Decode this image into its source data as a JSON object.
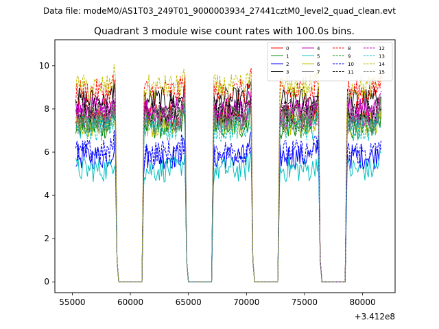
{
  "chart_data": {
    "type": "line",
    "suptitle": "Data file: modeM0/AS1T03_249T01_9000003934_27441cztM0_level2_quad_clean.evt",
    "title": "Quadrant 3 module wise count rates with 100.0s bins.",
    "xlabel": "",
    "ylabel": "",
    "x_offset_label": "+3.412e8",
    "xlim": [
      53500,
      82800
    ],
    "ylim": [
      -0.5,
      11.2
    ],
    "x_ticks": [
      55000,
      60000,
      65000,
      70000,
      75000,
      80000
    ],
    "x_tick_labels": [
      "55000",
      "60000",
      "65000",
      "70000",
      "75000",
      "80000"
    ],
    "y_ticks": [
      0,
      2,
      4,
      6,
      8,
      10
    ],
    "y_tick_labels": [
      "0",
      "2",
      "4",
      "6",
      "8",
      "10"
    ],
    "legend_position": "top-right",
    "segments": [
      {
        "on": [
          55300,
          58700
        ],
        "off": [
          59000,
          61000
        ]
      },
      {
        "on": [
          61200,
          64700
        ],
        "off": [
          65000,
          67000
        ]
      },
      {
        "on": [
          67200,
          70400
        ],
        "off": [
          70700,
          72700
        ]
      },
      {
        "on": [
          72900,
          76200
        ],
        "off": [
          76500,
          78500
        ]
      },
      {
        "on": [
          78700,
          81600
        ],
        "off": null
      }
    ],
    "series": [
      {
        "name": "0",
        "color": "#ff0000",
        "dash": "solid",
        "mean": 7.8
      },
      {
        "name": "1",
        "color": "#008000",
        "dash": "solid",
        "mean": 7.2
      },
      {
        "name": "2",
        "color": "#0000ff",
        "dash": "solid",
        "mean": 5.8
      },
      {
        "name": "3",
        "color": "#000000",
        "dash": "solid",
        "mean": 8.4
      },
      {
        "name": "4",
        "color": "#bf00bf",
        "dash": "solid",
        "mean": 8.0
      },
      {
        "name": "5",
        "color": "#00bfbf",
        "dash": "solid",
        "mean": 5.2
      },
      {
        "name": "6",
        "color": "#bfbf00",
        "dash": "solid",
        "mean": 7.3
      },
      {
        "name": "7",
        "color": "#808080",
        "dash": "solid",
        "mean": 7.6
      },
      {
        "name": "8",
        "color": "#ff0000",
        "dash": "dashed",
        "mean": 8.8
      },
      {
        "name": "9",
        "color": "#008000",
        "dash": "dashed",
        "mean": 7.5
      },
      {
        "name": "10",
        "color": "#0000ff",
        "dash": "dashed",
        "mean": 6.0
      },
      {
        "name": "11",
        "color": "#000000",
        "dash": "dashed",
        "mean": 7.9
      },
      {
        "name": "12",
        "color": "#bf00bf",
        "dash": "dashed",
        "mean": 7.7
      },
      {
        "name": "13",
        "color": "#00bfbf",
        "dash": "dashed",
        "mean": 7.1
      },
      {
        "name": "14",
        "color": "#bfbf00",
        "dash": "dashed",
        "mean": 9.0
      },
      {
        "name": "15",
        "color": "#808080",
        "dash": "dashed",
        "mean": 7.4
      }
    ]
  }
}
